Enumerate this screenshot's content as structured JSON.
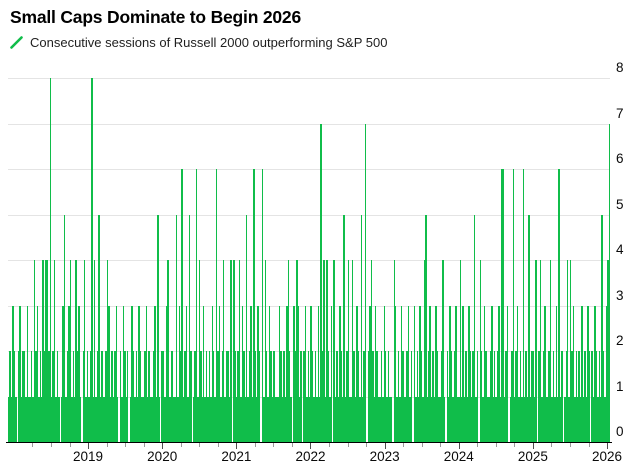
{
  "header": {
    "title": "Small Caps Dominate to Begin 2026",
    "legend_label": "Consecutive sessions of Russell 2000 outperforming S&P 500",
    "legend_mark_icon": "diagonal-line-swatch"
  },
  "colors": {
    "background": "#ffffff",
    "bar_green": "#10bd4a",
    "gridline": "#e4e4e4",
    "axis_line": "#000000",
    "tick_major": "#4d4d4d",
    "tick_minor": "#9a9a9a",
    "title_text": "#000000",
    "legend_text": "#1f1f1f",
    "axis_label_text": "#0a0a0a"
  },
  "chart_data": {
    "type": "bar",
    "title": "Small Caps Dominate to Begin 2026",
    "series_label": "Consecutive sessions of Russell 2000 outperforming S&P 500",
    "ylabel": "",
    "xlabel": "",
    "y_axis_side": "right",
    "ylim": [
      0,
      8
    ],
    "y_ticks": [
      0,
      1,
      2,
      3,
      4,
      5,
      6,
      7,
      8
    ],
    "grid": "horizontal",
    "legend_position": "top-left",
    "x_range_years": [
      2017.92,
      2026.04
    ],
    "x_tick_years": [
      2019,
      2020,
      2021,
      2022,
      2023,
      2024,
      2025,
      2026
    ],
    "x_minor_tick_step_years": 0.25,
    "sampling": "streak values approximated at ~weekly resolution from dense daily bars",
    "notable_peaks": [
      {
        "year": 2018.5,
        "value": 8
      },
      {
        "year": 2019.0,
        "value": 8
      },
      {
        "year": 2020.25,
        "value": 6
      },
      {
        "year": 2020.45,
        "value": 6
      },
      {
        "year": 2020.8,
        "value": 6
      },
      {
        "year": 2021.2,
        "value": 6
      },
      {
        "year": 2021.4,
        "value": 6
      },
      {
        "year": 2022.1,
        "value": 7
      },
      {
        "year": 2022.7,
        "value": 7
      },
      {
        "year": 2024.55,
        "value": 6
      },
      {
        "year": 2024.7,
        "value": 6
      },
      {
        "year": 2024.85,
        "value": 6
      },
      {
        "year": 2025.3,
        "value": 6
      },
      {
        "year": 2026.02,
        "value": 7
      }
    ],
    "values": [
      1,
      2,
      1,
      3,
      2,
      1,
      0,
      2,
      3,
      1,
      2,
      2,
      1,
      3,
      1,
      1,
      2,
      1,
      4,
      2,
      3,
      1,
      2,
      1,
      4,
      2,
      4,
      4,
      2,
      8,
      1,
      2,
      4,
      1,
      2,
      1,
      0,
      1,
      3,
      5,
      1,
      2,
      3,
      4,
      1,
      2,
      1,
      4,
      2,
      3,
      1,
      0,
      2,
      4,
      1,
      2,
      1,
      2,
      8,
      1,
      4,
      1,
      2,
      5,
      1,
      2,
      1,
      1,
      2,
      4,
      3,
      1,
      2,
      1,
      2,
      3,
      1,
      0,
      2,
      1,
      3,
      2,
      1,
      2,
      0,
      1,
      3,
      2,
      1,
      2,
      1,
      3,
      2,
      1,
      1,
      2,
      3,
      1,
      2,
      1,
      1,
      2,
      3,
      1,
      5,
      1,
      0,
      2,
      2,
      1,
      3,
      4,
      1,
      1,
      2,
      1,
      1,
      5,
      1,
      3,
      2,
      6,
      1,
      2,
      3,
      1,
      5,
      2,
      0,
      1,
      2,
      6,
      1,
      4,
      2,
      1,
      3,
      1,
      2,
      1,
      2,
      1,
      3,
      2,
      1,
      6,
      2,
      3,
      1,
      2,
      4,
      1,
      2,
      2,
      1,
      4,
      0,
      4,
      2,
      1,
      2,
      4,
      1,
      3,
      2,
      1,
      5,
      1,
      2,
      3,
      1,
      6,
      2,
      1,
      3,
      2,
      0,
      6,
      1,
      4,
      2,
      1,
      3,
      2,
      1,
      2,
      1,
      1,
      1,
      3,
      2,
      1,
      2,
      1,
      3,
      4,
      2,
      1,
      0,
      3,
      2,
      4,
      3,
      1,
      2,
      0,
      2,
      3,
      1,
      2,
      1,
      3,
      2,
      1,
      2,
      1,
      3,
      1,
      7,
      2,
      4,
      1,
      4,
      2,
      1,
      3,
      0,
      4,
      1,
      2,
      1,
      3,
      2,
      1,
      5,
      1,
      2,
      4,
      1,
      1,
      4,
      2,
      1,
      3,
      2,
      1,
      5,
      1,
      2,
      7,
      0,
      2,
      3,
      4,
      2,
      1,
      3,
      2,
      1,
      1,
      2,
      1,
      3,
      2,
      1,
      2,
      1,
      1,
      0,
      4,
      3,
      1,
      2,
      1,
      3,
      2,
      1,
      1,
      2,
      3,
      1,
      2,
      0,
      3,
      1,
      2,
      1,
      3,
      2,
      1,
      4,
      5,
      1,
      2,
      3,
      1,
      2,
      1,
      3,
      2,
      1,
      1,
      2,
      4,
      1,
      0,
      2,
      1,
      3,
      2,
      1,
      2,
      3,
      1,
      1,
      4,
      1,
      3,
      1,
      2,
      1,
      3,
      2,
      1,
      2,
      5,
      1,
      2,
      0,
      4,
      2,
      1,
      3,
      2,
      1,
      1,
      2,
      3,
      1,
      2,
      1,
      2,
      3,
      1,
      6,
      6,
      1,
      2,
      3,
      0,
      1,
      2,
      6,
      1,
      2,
      3,
      1,
      2,
      1,
      6,
      1,
      2,
      1,
      5,
      1,
      2,
      2,
      1,
      4,
      0,
      2,
      4,
      1,
      2,
      3,
      1,
      1,
      2,
      4,
      1,
      2,
      1,
      3,
      1,
      6,
      1,
      2,
      0,
      1,
      2,
      4,
      1,
      4,
      2,
      3,
      1,
      2,
      1,
      2,
      1,
      3,
      1,
      2,
      1,
      3,
      2,
      0,
      2,
      1,
      3,
      2,
      1,
      2,
      1,
      5,
      2,
      1,
      3,
      4,
      7
    ]
  }
}
